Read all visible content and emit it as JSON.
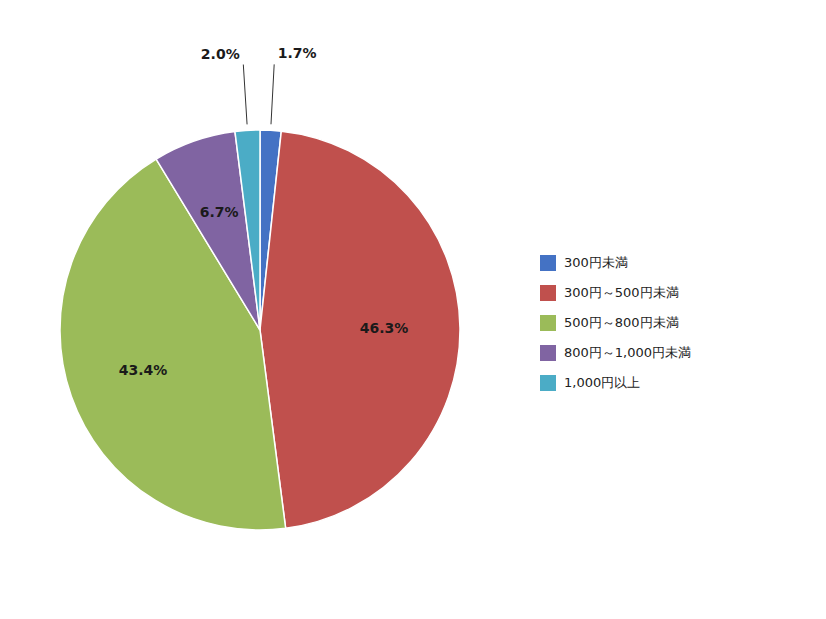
{
  "chart_data": {
    "type": "pie",
    "categories": [
      "300円未満",
      "300円～500円未満",
      "500円～800円未満",
      "800円～1,000円未満",
      "1,000円以上"
    ],
    "values": [
      1.7,
      46.3,
      43.4,
      6.7,
      2.0
    ],
    "value_labels": [
      "1.7%",
      "46.3%",
      "43.4%",
      "6.7%",
      "2.0%"
    ],
    "colors": [
      "#4472C4",
      "#C0504D",
      "#9BBB59",
      "#8064A2",
      "#4BACC6"
    ],
    "data_labels": true,
    "legend": "right"
  }
}
